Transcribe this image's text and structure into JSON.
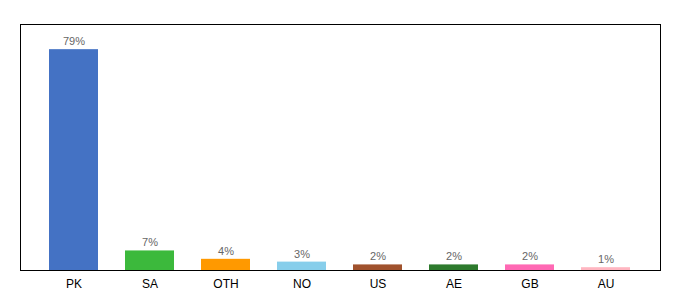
{
  "chart_data": {
    "type": "bar",
    "categories": [
      "PK",
      "SA",
      "OTH",
      "NO",
      "US",
      "AE",
      "GB",
      "AU"
    ],
    "values": [
      79,
      7,
      4,
      3,
      2,
      2,
      2,
      1
    ],
    "value_labels": [
      "79%",
      "7%",
      "4%",
      "3%",
      "2%",
      "2%",
      "2%",
      "1%"
    ],
    "colors": [
      "#4472C4",
      "#3CB93C",
      "#FF9900",
      "#87CEEB",
      "#A0522D",
      "#2D7A2D",
      "#FF69B4",
      "#FFB6C1"
    ],
    "ylim": [
      0,
      88
    ],
    "yticks": [],
    "data_labels": true,
    "tick_labels": "x",
    "grid": false
  }
}
